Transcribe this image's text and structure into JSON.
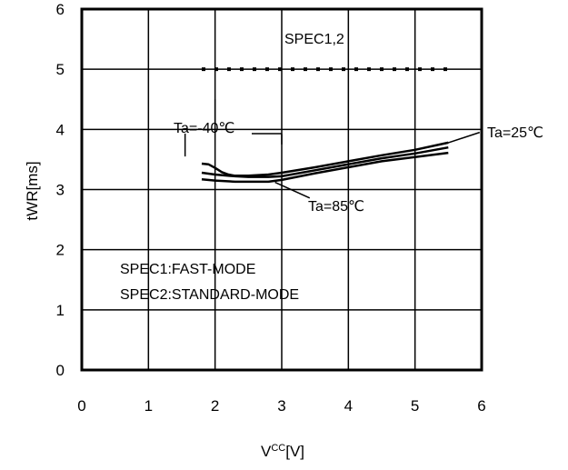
{
  "chart_data": {
    "type": "line",
    "title": "",
    "xlabel": "V",
    "xlabel_sup": "CC",
    "xlabel_unit": "[V]",
    "ylabel": "tWR[ms]",
    "xlim": [
      0,
      6
    ],
    "ylim": [
      0,
      6
    ],
    "x_ticks": [
      "0",
      "1",
      "2",
      "3",
      "4",
      "5",
      "6"
    ],
    "y_ticks": [
      "0",
      "1",
      "2",
      "3",
      "4",
      "5",
      "6"
    ],
    "grid": true,
    "spec_line": {
      "label": "SPEC1,2",
      "value": 5,
      "x_range": [
        1.8,
        5.5
      ]
    },
    "series": [
      {
        "name": "Ta=-40℃",
        "x": [
          1.8,
          1.9,
          2.0,
          2.1,
          2.2,
          2.3,
          2.5,
          2.8,
          3.0,
          3.5,
          4.0,
          4.5,
          5.0,
          5.5
        ],
        "y": [
          3.43,
          3.42,
          3.36,
          3.29,
          3.25,
          3.23,
          3.23,
          3.25,
          3.28,
          3.37,
          3.47,
          3.57,
          3.66,
          3.78
        ]
      },
      {
        "name": "Ta=25℃",
        "x": [
          1.8,
          2.0,
          2.3,
          2.5,
          2.8,
          3.0,
          3.5,
          4.0,
          4.5,
          5.0,
          5.5
        ],
        "y": [
          3.28,
          3.25,
          3.22,
          3.21,
          3.21,
          3.22,
          3.32,
          3.42,
          3.52,
          3.6,
          3.7
        ]
      },
      {
        "name": "Ta=85℃",
        "x": [
          1.8,
          2.0,
          2.3,
          2.5,
          2.8,
          3.0,
          3.5,
          4.0,
          4.5,
          5.0,
          5.5
        ],
        "y": [
          3.17,
          3.15,
          3.13,
          3.13,
          3.13,
          3.16,
          3.27,
          3.37,
          3.47,
          3.54,
          3.61
        ]
      }
    ],
    "annotations": [
      {
        "text": "SPEC1:FAST-MODE"
      },
      {
        "text": "SPEC2:STANDARD-MODE"
      }
    ]
  }
}
